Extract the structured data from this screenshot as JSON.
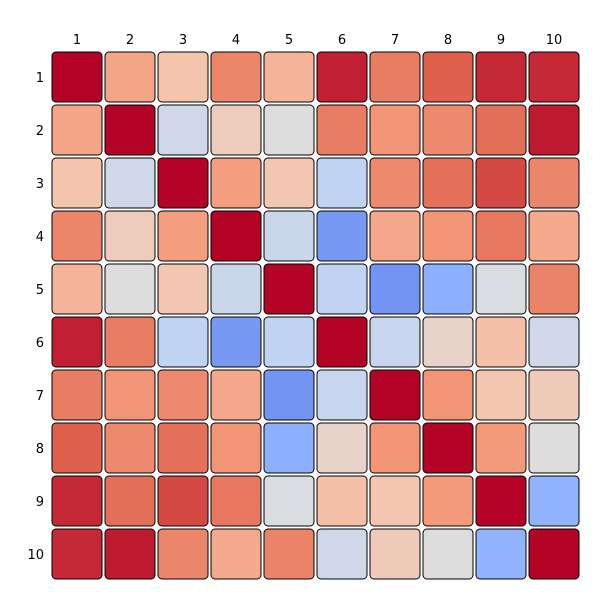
{
  "chart_data": {
    "type": "heatmap",
    "title": "",
    "xlabel": "",
    "ylabel": "",
    "x_labels": [
      "1",
      "2",
      "3",
      "4",
      "5",
      "6",
      "7",
      "8",
      "9",
      "10"
    ],
    "y_labels": [
      "1",
      "2",
      "3",
      "4",
      "5",
      "6",
      "7",
      "8",
      "9",
      "10"
    ],
    "colormap": "coolwarm",
    "vlim": [
      -0.6,
      1.0
    ],
    "values": [
      [
        1.0,
        0.55,
        0.4,
        0.67,
        0.48,
        0.94,
        0.7,
        0.8,
        0.92,
        0.92
      ],
      [
        0.55,
        1.0,
        0.12,
        0.34,
        0.2,
        0.7,
        0.62,
        0.66,
        0.75,
        0.95
      ],
      [
        0.4,
        0.12,
        1.0,
        0.58,
        0.38,
        0.05,
        0.66,
        0.74,
        0.85,
        0.67
      ],
      [
        0.67,
        0.34,
        0.58,
        1.0,
        0.1,
        -0.3,
        0.54,
        0.62,
        0.72,
        0.53
      ],
      [
        0.48,
        0.2,
        0.38,
        0.1,
        1.0,
        0.05,
        -0.32,
        -0.2,
        0.18,
        0.68
      ],
      [
        0.94,
        0.7,
        0.05,
        -0.3,
        0.05,
        1.0,
        0.08,
        0.28,
        0.42,
        0.12
      ],
      [
        0.7,
        0.62,
        0.66,
        0.54,
        -0.32,
        0.08,
        1.0,
        0.62,
        0.39,
        0.35
      ],
      [
        0.8,
        0.66,
        0.74,
        0.62,
        -0.2,
        0.28,
        0.62,
        1.0,
        0.6,
        0.2
      ],
      [
        0.92,
        0.75,
        0.85,
        0.72,
        0.18,
        0.42,
        0.39,
        0.6,
        1.0,
        -0.18
      ],
      [
        0.92,
        0.95,
        0.67,
        0.53,
        0.68,
        0.12,
        0.35,
        0.2,
        -0.18,
        1.0
      ]
    ]
  }
}
